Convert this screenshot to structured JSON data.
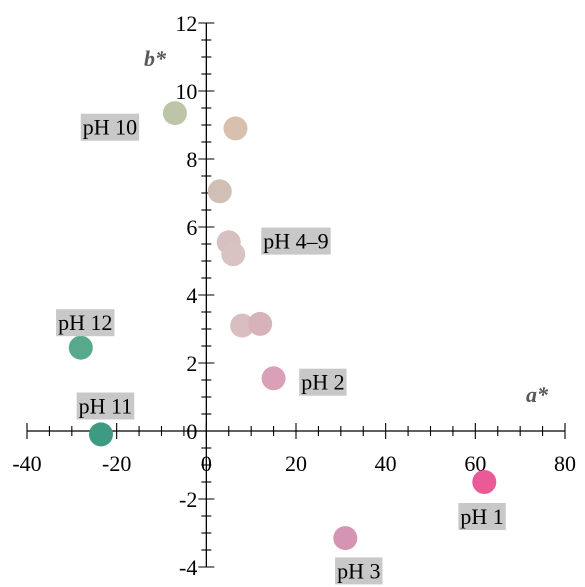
{
  "chart_data": {
    "type": "scatter",
    "title": "",
    "xlabel": "a*",
    "ylabel": "b*",
    "xlim": [
      -40,
      80
    ],
    "ylim": [
      -4,
      12
    ],
    "x_ticks": [
      -40,
      -20,
      0,
      20,
      40,
      60,
      80
    ],
    "y_ticks": [
      -4,
      -2,
      0,
      2,
      4,
      6,
      8,
      10,
      12
    ],
    "x_tick_labels": [
      "-40",
      "-20",
      "0",
      "20",
      "40",
      "60",
      "80"
    ],
    "y_tick_labels": [
      "-4",
      "-2",
      "0",
      "2",
      "4",
      "6",
      "8",
      "10",
      "12"
    ],
    "grid": false,
    "axes_cross_at_origin": true,
    "points": [
      {
        "x": 62,
        "y": -1.5,
        "color": "#ea5a97"
      },
      {
        "x": 15,
        "y": 1.55,
        "color": "#d9a0b8"
      },
      {
        "x": 31,
        "y": -3.15,
        "color": "#d494b2"
      },
      {
        "x": 8,
        "y": 3.1,
        "color": "#d8bdc1"
      },
      {
        "x": 12,
        "y": 3.15,
        "color": "#d5b3b8"
      },
      {
        "x": 5,
        "y": 5.55,
        "color": "#d6c0c0"
      },
      {
        "x": 6,
        "y": 5.2,
        "color": "#d8c2c2"
      },
      {
        "x": 3,
        "y": 7.05,
        "color": "#d0bfb5"
      },
      {
        "x": 6.5,
        "y": 8.9,
        "color": "#d9bfae"
      },
      {
        "x": -7,
        "y": 9.35,
        "color": "#bcc5a8"
      },
      {
        "x": -23.5,
        "y": -0.1,
        "color": "#3f9a83"
      },
      {
        "x": -28,
        "y": 2.45,
        "color": "#58a88c"
      }
    ],
    "annotations": [
      {
        "text": "pH 1",
        "x": 61.5,
        "y": -2.5
      },
      {
        "text": "pH 2",
        "x": 26,
        "y": 1.45
      },
      {
        "text": "pH 3",
        "x": 34,
        "y": -4.1
      },
      {
        "text": "pH 4–9",
        "x": 20,
        "y": 5.6
      },
      {
        "text": "pH 10",
        "x": -21.5,
        "y": 8.95
      },
      {
        "text": "pH 11",
        "x": -22.5,
        "y": 0.75
      },
      {
        "text": "pH 12",
        "x": -27,
        "y": 3.2
      }
    ],
    "annotation_background": "#c8c8c8"
  }
}
